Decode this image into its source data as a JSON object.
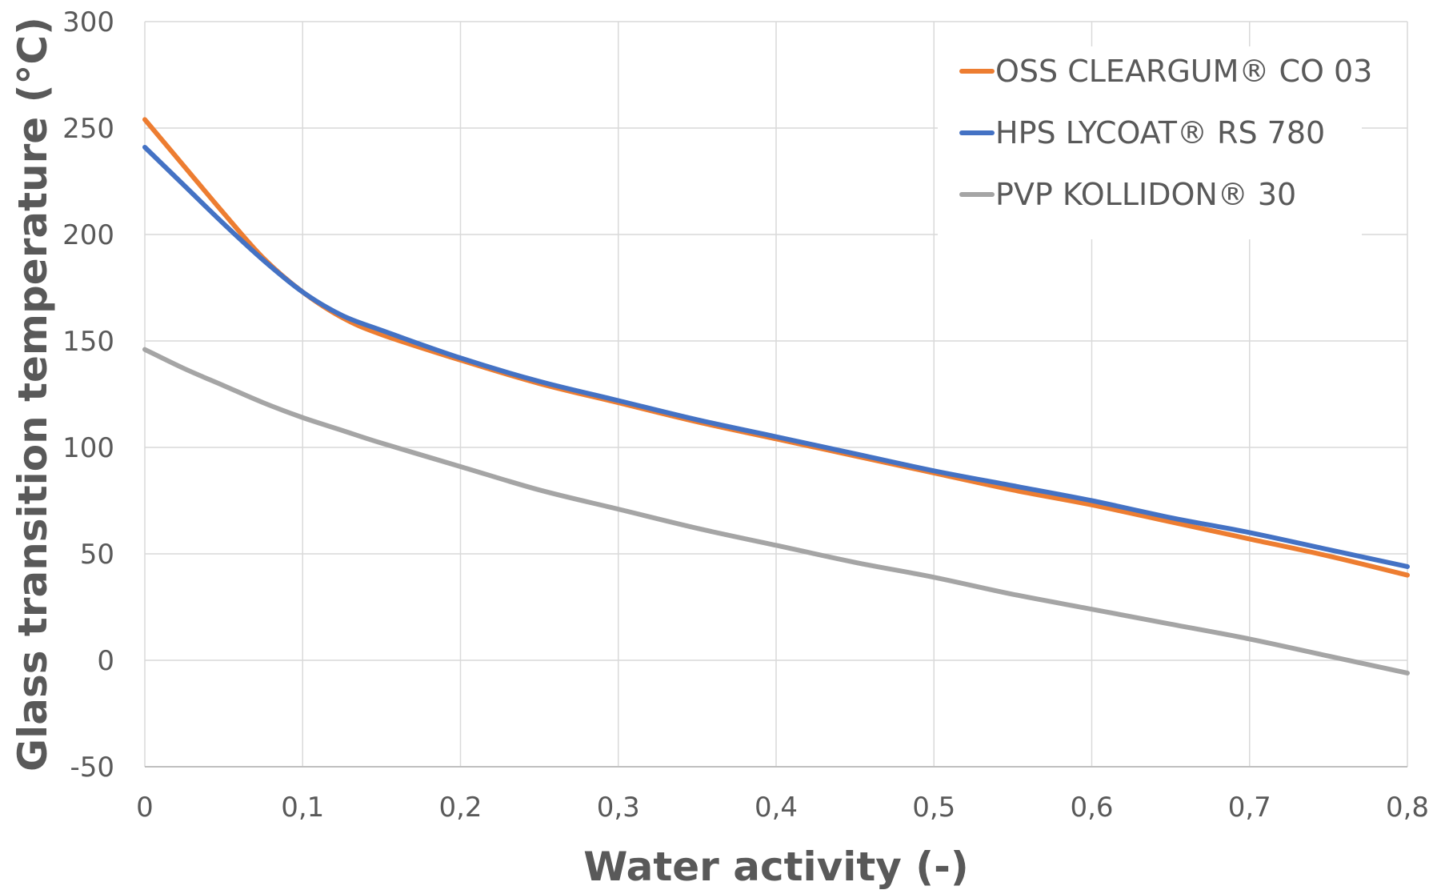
{
  "chart_data": {
    "type": "line",
    "title": "",
    "xlabel": "Water activity (-)",
    "ylabel": "Glass transition temperature (°C)",
    "xlim": [
      0,
      0.8
    ],
    "ylim": [
      -50,
      300
    ],
    "x_ticks": [
      0,
      0.1,
      0.2,
      0.3,
      0.4,
      0.5,
      0.6,
      0.7,
      0.8
    ],
    "x_tick_labels": [
      "0",
      "0,1",
      "0,2",
      "0,3",
      "0,4",
      "0,5",
      "0,6",
      "0,7",
      "0,8"
    ],
    "y_ticks": [
      -50,
      0,
      50,
      100,
      150,
      200,
      250,
      300
    ],
    "y_tick_labels": [
      "-50",
      "0",
      "50",
      "100",
      "150",
      "200",
      "250",
      "300"
    ],
    "grid": true,
    "legend_position": "top-right",
    "series": [
      {
        "name": "OSS CLEARGUM® CO 03",
        "color": "#ed7d31",
        "x": [
          0,
          0.025,
          0.05,
          0.075,
          0.1,
          0.125,
          0.15,
          0.2,
          0.25,
          0.3,
          0.35,
          0.4,
          0.45,
          0.5,
          0.55,
          0.6,
          0.65,
          0.7,
          0.75,
          0.8
        ],
        "y": [
          254,
          232,
          210,
          189,
          173,
          161,
          153,
          141,
          130,
          121,
          112,
          104,
          96,
          88,
          80,
          73,
          65,
          57,
          49,
          40
        ]
      },
      {
        "name": "HPS LYCOAT® RS 780",
        "color": "#4472c4",
        "x": [
          0,
          0.025,
          0.05,
          0.075,
          0.1,
          0.125,
          0.15,
          0.2,
          0.25,
          0.3,
          0.35,
          0.4,
          0.45,
          0.5,
          0.55,
          0.6,
          0.65,
          0.7,
          0.75,
          0.8
        ],
        "y": [
          241,
          223,
          205,
          188,
          173,
          162,
          155,
          142,
          131,
          122,
          113,
          105,
          97,
          89,
          82,
          75,
          67,
          60,
          52,
          44
        ]
      },
      {
        "name": "PVP KOLLIDON® 30",
        "color": "#a5a5a5",
        "x": [
          0,
          0.025,
          0.05,
          0.075,
          0.1,
          0.125,
          0.15,
          0.2,
          0.25,
          0.3,
          0.35,
          0.4,
          0.45,
          0.5,
          0.55,
          0.6,
          0.65,
          0.7,
          0.75,
          0.8
        ],
        "y": [
          146,
          137,
          129,
          121,
          114,
          108,
          102,
          91,
          80,
          71,
          62,
          54,
          46,
          39,
          31,
          24,
          17,
          10,
          2,
          -6
        ]
      }
    ]
  }
}
